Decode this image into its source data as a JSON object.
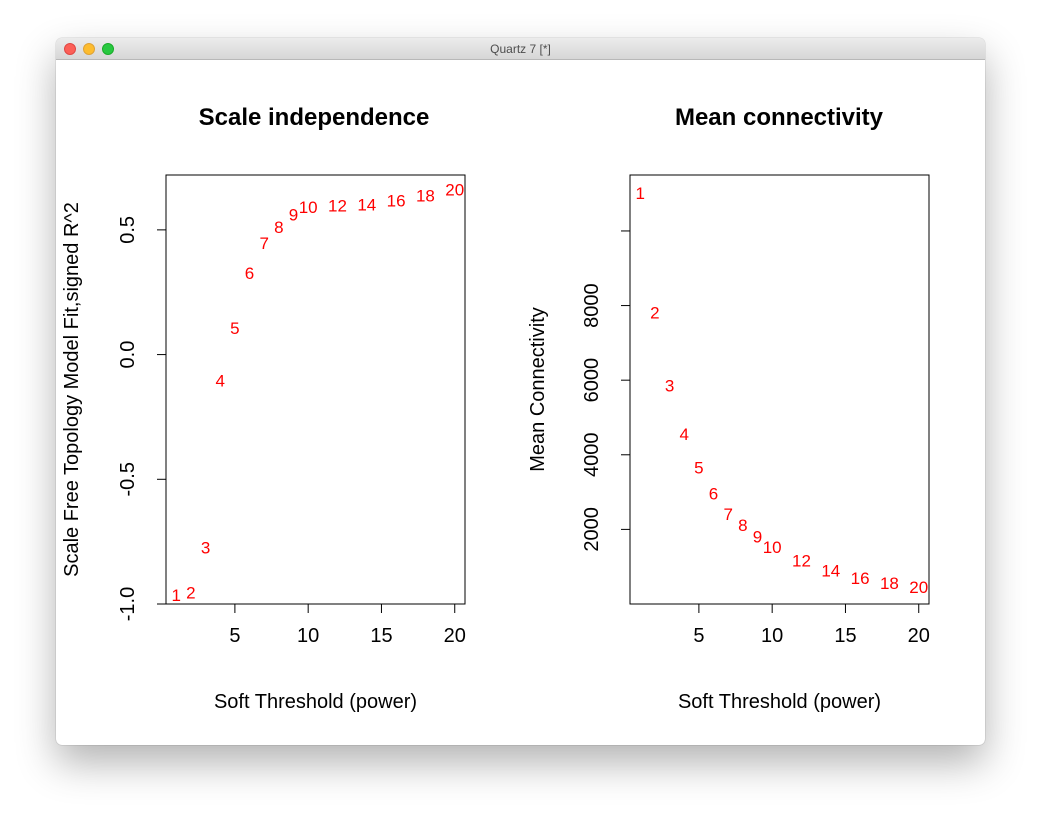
{
  "window": {
    "title": "Quartz 7 [*]"
  },
  "chart_data": [
    {
      "type": "scatter",
      "title": "Scale independence",
      "xlabel": "Soft Threshold (power)",
      "ylabel": "Scale Free Topology Model Fit,signed R^2",
      "xlim": [
        0.3,
        20.7
      ],
      "ylim": [
        -1.0,
        0.72
      ],
      "xticks": [
        5,
        10,
        15,
        20
      ],
      "yticks": [
        -1.0,
        -0.5,
        0.0,
        0.5
      ],
      "ytick_labels": [
        "-1.0",
        "-0.5",
        "0.0",
        "0.5"
      ],
      "label_color": "#ff0000",
      "points": [
        {
          "label": "1",
          "x": 1,
          "y": -0.965
        },
        {
          "label": "2",
          "x": 2,
          "y": -0.955
        },
        {
          "label": "3",
          "x": 3,
          "y": -0.775
        },
        {
          "label": "4",
          "x": 4,
          "y": -0.105
        },
        {
          "label": "5",
          "x": 5,
          "y": 0.105
        },
        {
          "label": "6",
          "x": 6,
          "y": 0.325
        },
        {
          "label": "7",
          "x": 7,
          "y": 0.445
        },
        {
          "label": "8",
          "x": 8,
          "y": 0.51
        },
        {
          "label": "9",
          "x": 9,
          "y": 0.56
        },
        {
          "label": "10",
          "x": 10,
          "y": 0.59
        },
        {
          "label": "12",
          "x": 12,
          "y": 0.595
        },
        {
          "label": "14",
          "x": 14,
          "y": 0.6
        },
        {
          "label": "16",
          "x": 16,
          "y": 0.615
        },
        {
          "label": "18",
          "x": 18,
          "y": 0.635
        },
        {
          "label": "20",
          "x": 20,
          "y": 0.66
        }
      ]
    },
    {
      "type": "scatter",
      "title": "Mean connectivity",
      "xlabel": "Soft Threshold (power)",
      "ylabel": "Mean Connectivity",
      "xlim": [
        0.3,
        20.7
      ],
      "ylim": [
        0,
        11500
      ],
      "xticks": [
        5,
        10,
        15,
        20
      ],
      "yticks": [
        2000,
        4000,
        6000,
        8000,
        10000
      ],
      "ytick_labels": [
        "2000",
        "4000",
        "6000",
        "8000",
        ""
      ],
      "label_color": "#ff0000",
      "points": [
        {
          "label": "1",
          "x": 1,
          "y": 11000
        },
        {
          "label": "2",
          "x": 2,
          "y": 7800
        },
        {
          "label": "3",
          "x": 3,
          "y": 5850
        },
        {
          "label": "4",
          "x": 4,
          "y": 4550
        },
        {
          "label": "5",
          "x": 5,
          "y": 3650
        },
        {
          "label": "6",
          "x": 6,
          "y": 2950
        },
        {
          "label": "7",
          "x": 7,
          "y": 2400
        },
        {
          "label": "8",
          "x": 8,
          "y": 2100
        },
        {
          "label": "9",
          "x": 9,
          "y": 1800
        },
        {
          "label": "10",
          "x": 10,
          "y": 1520
        },
        {
          "label": "12",
          "x": 12,
          "y": 1150
        },
        {
          "label": "14",
          "x": 14,
          "y": 880
        },
        {
          "label": "16",
          "x": 16,
          "y": 680
        },
        {
          "label": "18",
          "x": 18,
          "y": 550
        },
        {
          "label": "20",
          "x": 20,
          "y": 440
        }
      ]
    }
  ]
}
